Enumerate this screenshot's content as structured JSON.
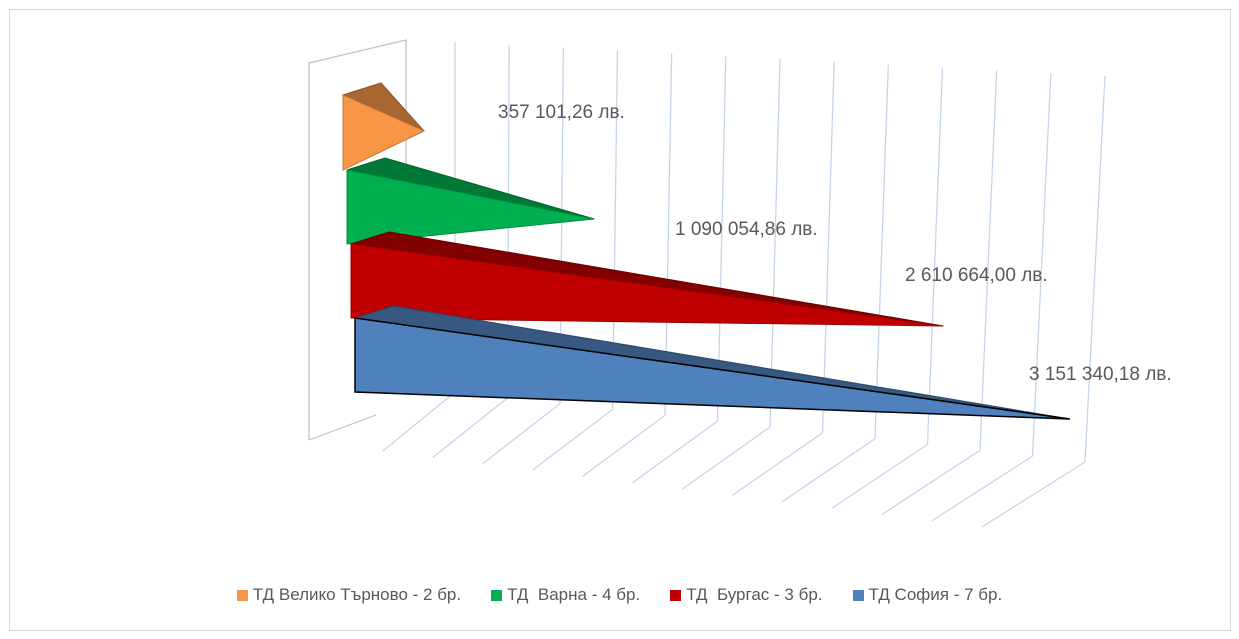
{
  "chart_data": {
    "type": "bar",
    "style": "3d-pyramid-horizontal",
    "title": "",
    "xlabel": "",
    "ylabel": "",
    "xlim": [
      0,
      3500000
    ],
    "grid": true,
    "legend_position": "bottom",
    "value_unit": "лв.",
    "series": [
      {
        "name": "ТД Велико Търново - 2 бр.",
        "value": 357101.26,
        "label": "357 101,26 лв.",
        "color": "#f79646"
      },
      {
        "name": "ТД  Варна - 4 бр.",
        "value": 1090054.86,
        "label": "1 090 054,86 лв.",
        "color": "#00b050"
      },
      {
        "name": "ТД  Бургас - 3 бр.",
        "value": 2610664.0,
        "label": "2 610 664,00 лв.",
        "color": "#c00000"
      },
      {
        "name": "ТД София - 7 бр.",
        "value": 3151340.18,
        "label": "3 151 340,18 лв.",
        "color": "#4f81bd"
      }
    ]
  }
}
